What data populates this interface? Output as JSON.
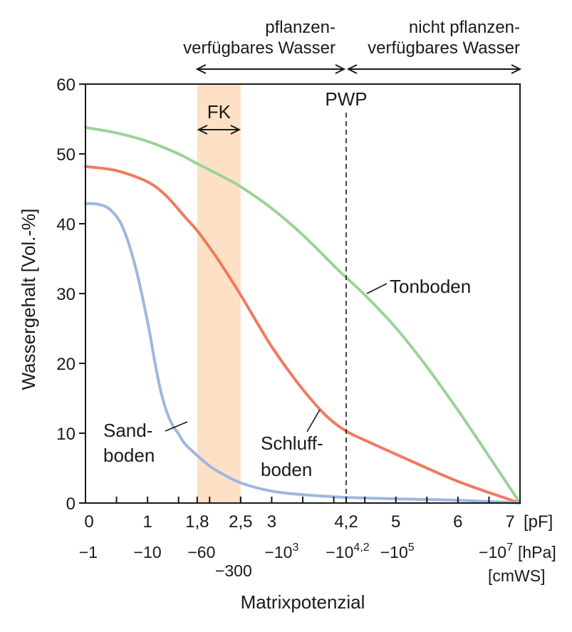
{
  "chart_data": {
    "type": "line",
    "ylabel": "Wassergehalt [Vol.-%]",
    "xlabel": "Matrixpotenzial",
    "ylim": [
      0,
      60
    ],
    "xlim": [
      0,
      7
    ],
    "yticks": [
      0,
      10,
      20,
      30,
      40,
      50,
      60
    ],
    "xticks_pf": [
      {
        "v": 0,
        "label": "0"
      },
      {
        "v": 1,
        "label": "1"
      },
      {
        "v": 1.8,
        "label": "1,8"
      },
      {
        "v": 2.5,
        "label": "2,5"
      },
      {
        "v": 3,
        "label": "3"
      },
      {
        "v": 4.2,
        "label": "4,2"
      },
      {
        "v": 5,
        "label": "5"
      },
      {
        "v": 6,
        "label": "6"
      },
      {
        "v": 7,
        "label": "7"
      }
    ],
    "x_unit_pf": "[pF]",
    "hpa_labels": {
      "m1": "−1",
      "m10": "−10",
      "m60": "−60",
      "m300": "−300",
      "m1e3_base": "−10",
      "m1e3_exp": "3",
      "m1e42_base": "−10",
      "m1e42_exp": "4,2",
      "m1e5_base": "−10",
      "m1e5_exp": "5",
      "m1e7_base": "−10",
      "m1e7_exp": "7",
      "unit_hpa": "[hPa]",
      "unit_cmws": "[cmWS]"
    },
    "fk_band": {
      "from": 1.8,
      "to": 2.5,
      "label": "FK",
      "color": "#fde0c5"
    },
    "pwp": {
      "x": 4.2,
      "label": "PWP"
    },
    "top_ranges": [
      {
        "from": 1.8,
        "to": 4.2,
        "line1": "pflanzen-",
        "line2": "verfügbares Wasser"
      },
      {
        "from": 4.2,
        "to": 7,
        "line1": "nicht pflanzen-",
        "line2": "verfügbares Wasser"
      }
    ],
    "series": [
      {
        "name": "Tonboden",
        "label_lines": [
          "Tonboden"
        ],
        "color": "#9dd19a",
        "x": [
          0,
          0.5,
          1,
          1.5,
          1.8,
          2.2,
          2.5,
          3,
          3.5,
          4,
          4.2,
          4.5,
          5,
          5.5,
          6,
          6.5,
          7
        ],
        "y": [
          53.8,
          53.0,
          51.8,
          50.0,
          48.6,
          46.8,
          45.3,
          42.2,
          38.4,
          34.0,
          32.3,
          29.8,
          25.1,
          19.5,
          13.3,
          6.7,
          0
        ]
      },
      {
        "name": "Schluffboden",
        "label_lines": [
          "Schluff-",
          "boden"
        ],
        "color": "#ef7b5f",
        "x": [
          0,
          0.5,
          1,
          1.3,
          1.6,
          1.8,
          2.0,
          2.2,
          2.5,
          2.8,
          3.0,
          3.3,
          3.6,
          3.9,
          4.2,
          4.5,
          5,
          5.5,
          6,
          6.5,
          7
        ],
        "y": [
          48.2,
          47.6,
          46.0,
          44.0,
          41.0,
          39.0,
          36.6,
          34.0,
          29.8,
          25.3,
          22.4,
          18.6,
          15.2,
          12.3,
          10.3,
          9.0,
          7.0,
          5.0,
          3.1,
          1.5,
          0
        ]
      },
      {
        "name": "Sandboden",
        "label_lines": [
          "Sand-",
          "boden"
        ],
        "color": "#9cb8e0",
        "x": [
          0,
          0.2,
          0.4,
          0.6,
          0.8,
          1.0,
          1.1,
          1.2,
          1.3,
          1.4,
          1.5,
          1.6,
          1.8,
          2.0,
          2.2,
          2.5,
          3.0,
          3.5,
          4.0,
          4.2,
          5.0,
          6.0,
          7.0
        ],
        "y": [
          42.9,
          42.8,
          42.0,
          39.5,
          34.0,
          26.0,
          21.0,
          16.5,
          13.3,
          11.2,
          9.9,
          8.5,
          6.8,
          5.3,
          4.2,
          2.9,
          1.7,
          1.2,
          0.9,
          0.8,
          0.6,
          0.4,
          0
        ]
      }
    ]
  }
}
